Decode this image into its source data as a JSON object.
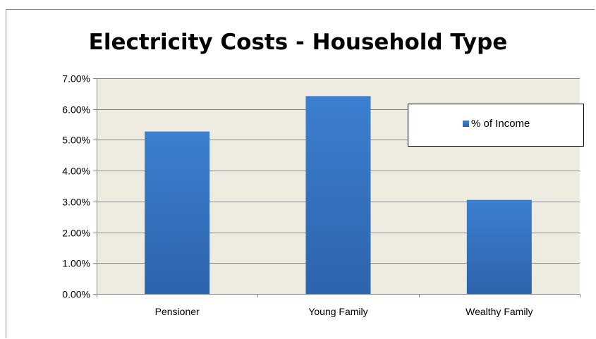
{
  "chart_data": {
    "type": "bar",
    "title": "Electricity Costs - Household Type",
    "categories": [
      "Pensioner",
      "Young Family",
      "Wealthy Family"
    ],
    "series": [
      {
        "name": "% of Income",
        "values": [
          5.27,
          6.42,
          3.05
        ]
      }
    ],
    "ylim": [
      0,
      7
    ],
    "y_ticks": [
      "0.00%",
      "1.00%",
      "2.00%",
      "3.00%",
      "4.00%",
      "5.00%",
      "6.00%",
      "7.00%"
    ],
    "xlabel": "",
    "ylabel": "",
    "grid": true,
    "legend_position": "top-right",
    "colors": {
      "bar_top": "#3c7fd0",
      "bar_bottom": "#2d64ac",
      "plot_background": "#eeebe0",
      "gridline": "#868686"
    }
  }
}
